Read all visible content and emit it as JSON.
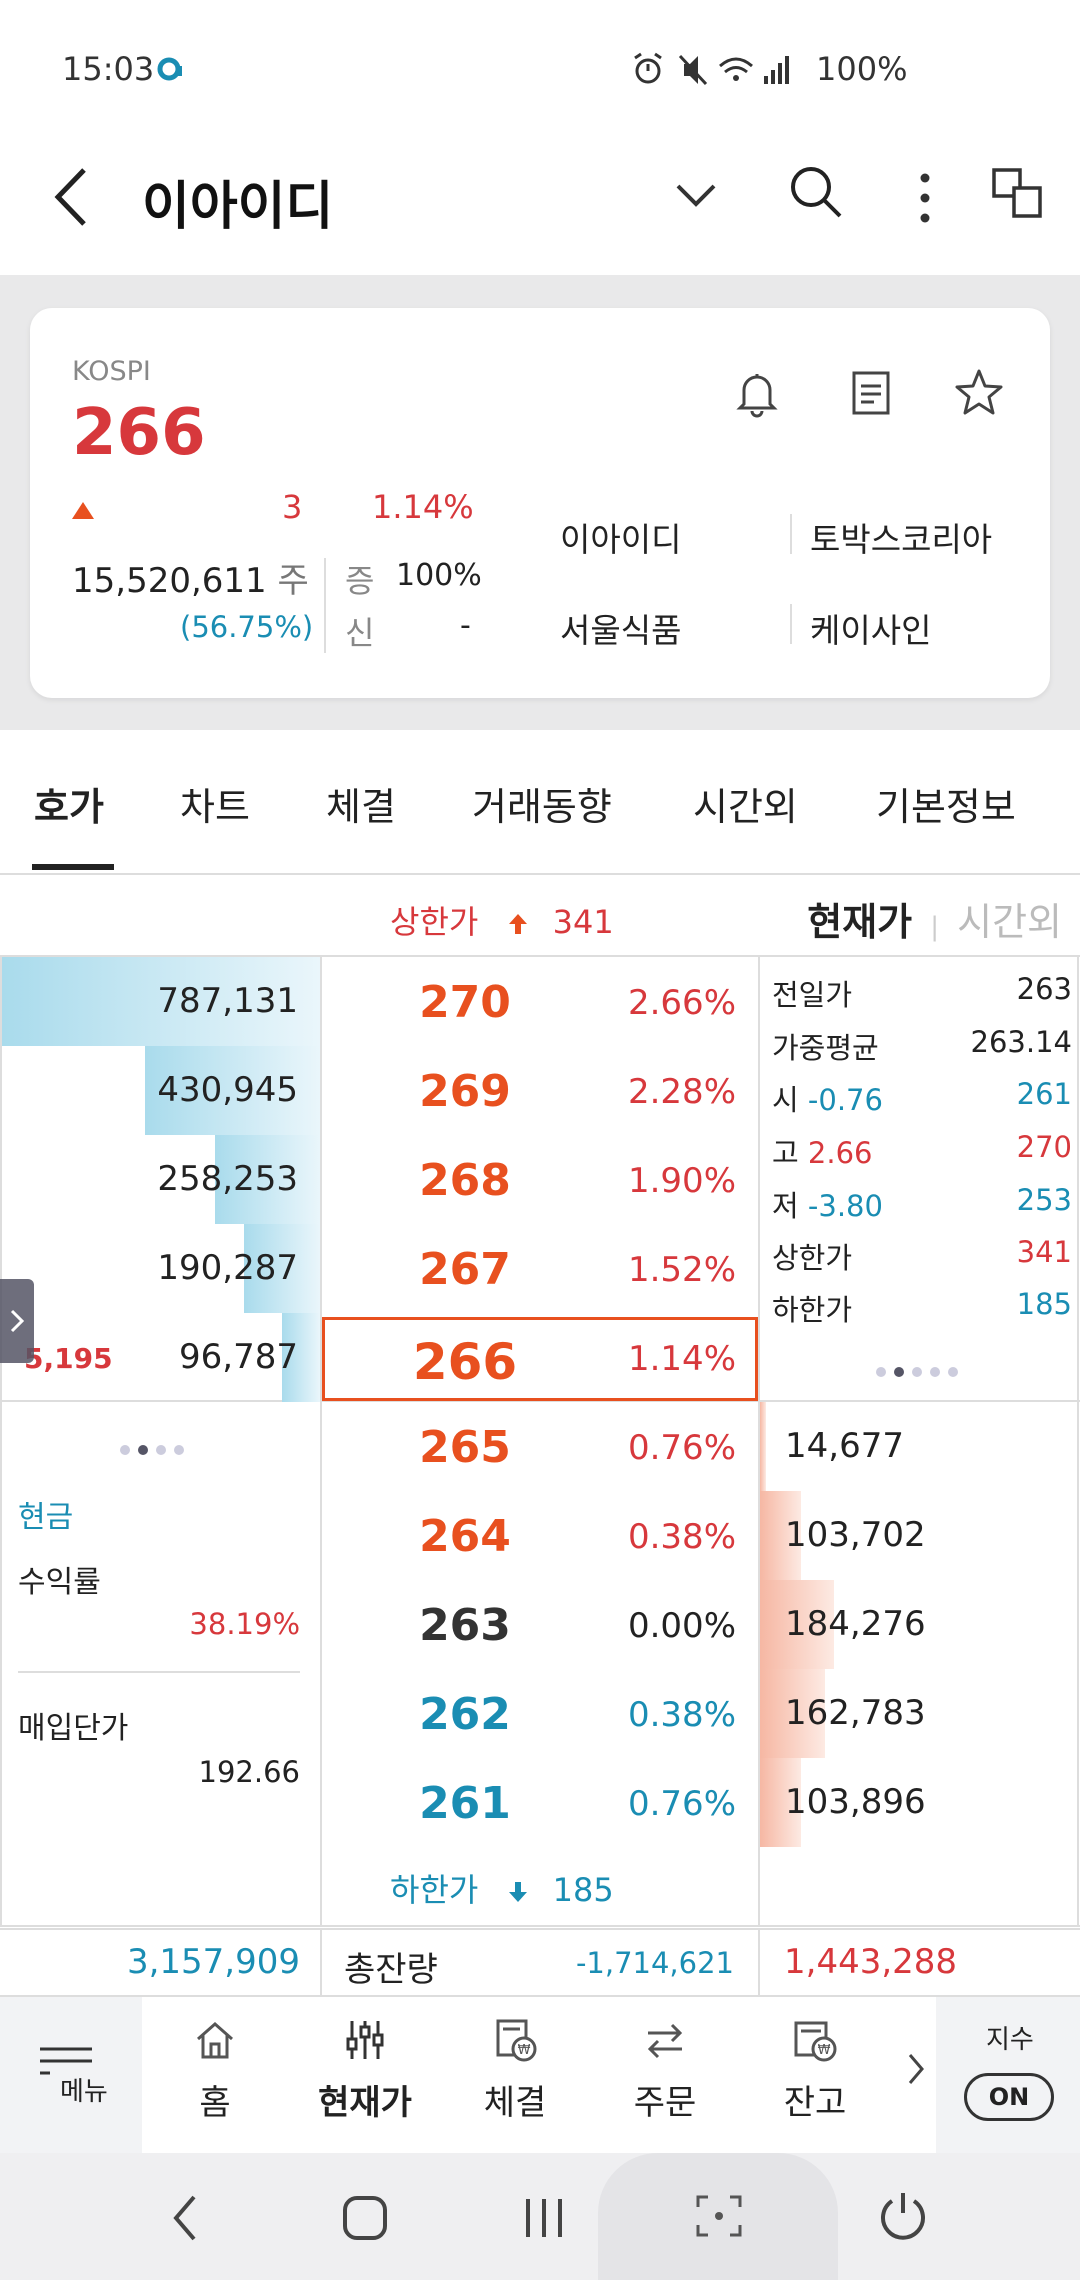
{
  "status_bar": {
    "time": "15:03",
    "battery": "100%"
  },
  "header": {
    "title": "이아이디"
  },
  "summary": {
    "market": "KOSPI",
    "price": "266",
    "change_amount": "3",
    "change_percent": "1.14%",
    "volume": "15,520,611",
    "volume_unit": "주",
    "volume_ratio": "(56.75%)",
    "margin_label": "증",
    "margin_value": "100%",
    "credit_label": "신",
    "credit_value": "-",
    "related": [
      "이아이디",
      "토박스코리아",
      "서울식품",
      "케이사인"
    ]
  },
  "tabs": [
    "호가",
    "차트",
    "체결",
    "거래동향",
    "시간외",
    "기본정보"
  ],
  "orderbook": {
    "upper_limit_label": "상한가",
    "upper_limit_value": "341",
    "lower_limit_label": "하한가",
    "lower_limit_value": "185",
    "mode_active": "현재가",
    "mode_inactive": "시간외",
    "asks": [
      {
        "volume": "787,131",
        "price": "270",
        "rate": "2.66%",
        "level": 1.0
      },
      {
        "volume": "430,945",
        "price": "269",
        "rate": "2.28%",
        "level": 0.55
      },
      {
        "volume": "258,253",
        "price": "268",
        "rate": "1.90%",
        "level": 0.33
      },
      {
        "volume": "190,287",
        "price": "267",
        "rate": "1.52%",
        "level": 0.24
      },
      {
        "volume": "96,787",
        "price": "266",
        "rate": "1.14%",
        "level": 0.12
      }
    ],
    "trade_tick": "5,195",
    "bids": [
      {
        "volume": "14,677",
        "price": "265",
        "rate": "0.76%",
        "level": 0.08
      },
      {
        "volume": "103,702",
        "price": "264",
        "rate": "0.38%",
        "level": 0.56
      },
      {
        "volume": "184,276",
        "price": "263",
        "rate": "0.00%",
        "level": 1.0
      },
      {
        "volume": "162,783",
        "price": "262",
        "rate": "0.38%",
        "level": 0.88
      },
      {
        "volume": "103,896",
        "price": "261",
        "rate": "0.76%",
        "level": 0.56
      }
    ],
    "info": {
      "prev_close_label": "전일가",
      "prev_close": "263",
      "vwap_label": "가중평균",
      "vwap": "263.14",
      "open_label": "시",
      "open_rate": "-0.76",
      "open": "261",
      "high_label": "고",
      "high_rate": "2.66",
      "high": "270",
      "low_label": "저",
      "low_rate": "-3.80",
      "low": "253",
      "upper_label": "상한가",
      "upper": "341",
      "lower_label": "하한가",
      "lower": "185"
    },
    "holdings": {
      "cash_label": "현금",
      "yield_label": "수익률",
      "yield": "38.19%",
      "avg_price_label": "매입단가",
      "avg_price": "192.66"
    },
    "total": {
      "ask_total": "3,157,909",
      "label": "총잔량",
      "diff": "-1,714,621",
      "bid_total": "1,443,288"
    }
  },
  "bottom_nav": {
    "menu": "메뉴",
    "items": [
      "홈",
      "현재가",
      "체결",
      "주문",
      "잔고"
    ],
    "index_label": "지수",
    "index_toggle": "ON"
  },
  "colors": {
    "up": "#d7383c",
    "down": "#1a8db3",
    "accent": "#e8501f"
  }
}
